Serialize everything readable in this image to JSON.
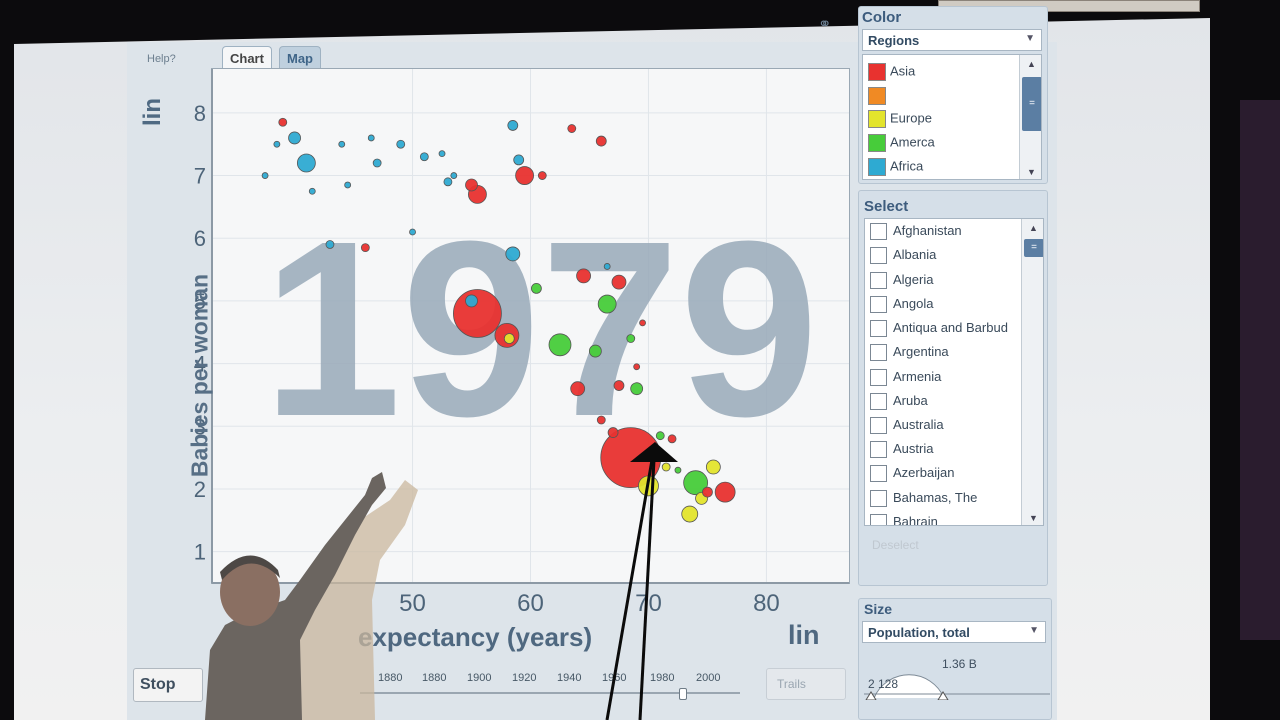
{
  "app": {
    "help": "Help?",
    "tabs": [
      {
        "label": "Chart"
      },
      {
        "label": "Map"
      }
    ],
    "y_axis": {
      "label": "Babies per woman",
      "scale": "lin"
    },
    "x_axis": {
      "label": "expectancy (years)",
      "scale": "lin"
    },
    "year": "1979",
    "controls": {
      "stop_label": "Stop",
      "trails_label": "Trails",
      "timeline_years": [
        "1880",
        "1880",
        "1900",
        "1920",
        "1940",
        "1960",
        "1980",
        "2000"
      ],
      "current_year_fraction": 0.84
    }
  },
  "color_panel": {
    "title": "Color",
    "dropdown": "Regions",
    "legend": [
      {
        "label": "Asia",
        "color": "#e8322f"
      },
      {
        "label": "",
        "color": "#f08a24"
      },
      {
        "label": "Europe",
        "color": "#e3e42c"
      },
      {
        "label": "Amerca",
        "color": "#47cc3a"
      },
      {
        "label": "Africa",
        "color": "#2eaad2"
      }
    ]
  },
  "select_panel": {
    "title": "Select",
    "countries": [
      "Afghanistan",
      "Albania",
      "Algeria",
      "Angola",
      "Antiqua and Barbud",
      "Argentina",
      "Armenia",
      "Aruba",
      "Australia",
      "Austria",
      "Azerbaijan",
      "Bahamas, The",
      "Bahrain"
    ],
    "deselect": "Deselect"
  },
  "size_panel": {
    "title": "Size",
    "dropdown": "Population, total",
    "max_label": "1.36 B",
    "min_label": "2 128"
  },
  "colors": {
    "asia": "#e8322f",
    "europe": "#e3e42c",
    "america": "#47cc3a",
    "africa": "#2eaad2",
    "year_watermark": "#98a9b8"
  },
  "chart_data": {
    "type": "scatter",
    "title": "",
    "xlabel": "expectancy (years)",
    "ylabel": "Babies per woman",
    "xlim": [
      33,
      87
    ],
    "ylim": [
      0.5,
      8.7
    ],
    "x_ticks": [
      50,
      60,
      70,
      80
    ],
    "y_ticks": [
      1,
      2,
      3,
      4,
      5,
      6,
      7,
      8
    ],
    "grid": true,
    "points": [
      {
        "x": 68.5,
        "y": 2.5,
        "size": 30,
        "color": "#e8322f"
      },
      {
        "x": 55.5,
        "y": 4.8,
        "size": 24,
        "color": "#e8322f"
      },
      {
        "x": 58,
        "y": 4.45,
        "size": 12,
        "color": "#e8322f"
      },
      {
        "x": 58.2,
        "y": 4.4,
        "size": 5,
        "color": "#e3e42c"
      },
      {
        "x": 55,
        "y": 5.0,
        "size": 6,
        "color": "#2eaad2"
      },
      {
        "x": 59.5,
        "y": 7.0,
        "size": 9,
        "color": "#e8322f"
      },
      {
        "x": 55.5,
        "y": 6.7,
        "size": 9,
        "color": "#e8322f"
      },
      {
        "x": 55,
        "y": 6.85,
        "size": 6,
        "color": "#e8322f"
      },
      {
        "x": 41,
        "y": 7.2,
        "size": 9,
        "color": "#2eaad2"
      },
      {
        "x": 40,
        "y": 7.6,
        "size": 6,
        "color": "#2eaad2"
      },
      {
        "x": 53,
        "y": 6.9,
        "size": 4,
        "color": "#2eaad2"
      },
      {
        "x": 58.5,
        "y": 7.8,
        "size": 5,
        "color": "#2eaad2"
      },
      {
        "x": 58.5,
        "y": 5.75,
        "size": 7,
        "color": "#2eaad2"
      },
      {
        "x": 59,
        "y": 7.25,
        "size": 5,
        "color": "#2eaad2"
      },
      {
        "x": 47,
        "y": 7.2,
        "size": 4,
        "color": "#2eaad2"
      },
      {
        "x": 49,
        "y": 7.5,
        "size": 4,
        "color": "#2eaad2"
      },
      {
        "x": 51,
        "y": 7.3,
        "size": 4,
        "color": "#2eaad2"
      },
      {
        "x": 39,
        "y": 7.85,
        "size": 4,
        "color": "#e8322f"
      },
      {
        "x": 63.5,
        "y": 7.75,
        "size": 4,
        "color": "#e8322f"
      },
      {
        "x": 66,
        "y": 7.55,
        "size": 5,
        "color": "#e8322f"
      },
      {
        "x": 61,
        "y": 7.0,
        "size": 4,
        "color": "#e8322f"
      },
      {
        "x": 64.5,
        "y": 5.4,
        "size": 7,
        "color": "#e8322f"
      },
      {
        "x": 67.5,
        "y": 5.3,
        "size": 7,
        "color": "#e8322f"
      },
      {
        "x": 66.5,
        "y": 4.95,
        "size": 9,
        "color": "#47cc3a"
      },
      {
        "x": 62.5,
        "y": 4.3,
        "size": 11,
        "color": "#47cc3a"
      },
      {
        "x": 65.5,
        "y": 4.2,
        "size": 6,
        "color": "#47cc3a"
      },
      {
        "x": 60.5,
        "y": 5.2,
        "size": 5,
        "color": "#47cc3a"
      },
      {
        "x": 64,
        "y": 3.6,
        "size": 7,
        "color": "#e8322f"
      },
      {
        "x": 69,
        "y": 3.6,
        "size": 6,
        "color": "#47cc3a"
      },
      {
        "x": 67.5,
        "y": 3.65,
        "size": 5,
        "color": "#e8322f"
      },
      {
        "x": 74,
        "y": 2.1,
        "size": 12,
        "color": "#47cc3a"
      },
      {
        "x": 76.5,
        "y": 1.95,
        "size": 10,
        "color": "#e8322f"
      },
      {
        "x": 73.5,
        "y": 1.6,
        "size": 8,
        "color": "#e3e42c"
      },
      {
        "x": 74.5,
        "y": 1.85,
        "size": 6,
        "color": "#e3e42c"
      },
      {
        "x": 75.5,
        "y": 2.35,
        "size": 7,
        "color": "#e3e42c"
      },
      {
        "x": 75,
        "y": 1.95,
        "size": 5,
        "color": "#e8322f"
      },
      {
        "x": 70,
        "y": 2.05,
        "size": 10,
        "color": "#e3e42c"
      },
      {
        "x": 71.5,
        "y": 2.35,
        "size": 4,
        "color": "#e3e42c"
      },
      {
        "x": 72,
        "y": 2.8,
        "size": 4,
        "color": "#e8322f"
      },
      {
        "x": 71,
        "y": 2.85,
        "size": 4,
        "color": "#47cc3a"
      },
      {
        "x": 67,
        "y": 2.9,
        "size": 5,
        "color": "#e8322f"
      },
      {
        "x": 66,
        "y": 3.1,
        "size": 4,
        "color": "#e8322f"
      },
      {
        "x": 68.5,
        "y": 4.4,
        "size": 4,
        "color": "#47cc3a"
      },
      {
        "x": 46,
        "y": 5.85,
        "size": 4,
        "color": "#e8322f"
      },
      {
        "x": 43,
        "y": 5.9,
        "size": 4,
        "color": "#2eaad2"
      },
      {
        "x": 37.5,
        "y": 7.0,
        "size": 3,
        "color": "#2eaad2"
      },
      {
        "x": 38.5,
        "y": 7.5,
        "size": 3,
        "color": "#2eaad2"
      },
      {
        "x": 41.5,
        "y": 6.75,
        "size": 3,
        "color": "#2eaad2"
      },
      {
        "x": 50,
        "y": 6.1,
        "size": 3,
        "color": "#2eaad2"
      },
      {
        "x": 66.5,
        "y": 5.55,
        "size": 3,
        "color": "#2eaad2"
      },
      {
        "x": 44,
        "y": 7.5,
        "size": 3,
        "color": "#2eaad2"
      },
      {
        "x": 46.5,
        "y": 7.6,
        "size": 3,
        "color": "#2eaad2"
      },
      {
        "x": 44.5,
        "y": 6.85,
        "size": 3,
        "color": "#2eaad2"
      },
      {
        "x": 52.5,
        "y": 7.35,
        "size": 3,
        "color": "#2eaad2"
      },
      {
        "x": 53.5,
        "y": 7.0,
        "size": 3,
        "color": "#2eaad2"
      },
      {
        "x": 69.5,
        "y": 4.65,
        "size": 3,
        "color": "#e8322f"
      },
      {
        "x": 69,
        "y": 3.95,
        "size": 3,
        "color": "#e8322f"
      },
      {
        "x": 72.5,
        "y": 2.3,
        "size": 3,
        "color": "#47cc3a"
      }
    ]
  }
}
